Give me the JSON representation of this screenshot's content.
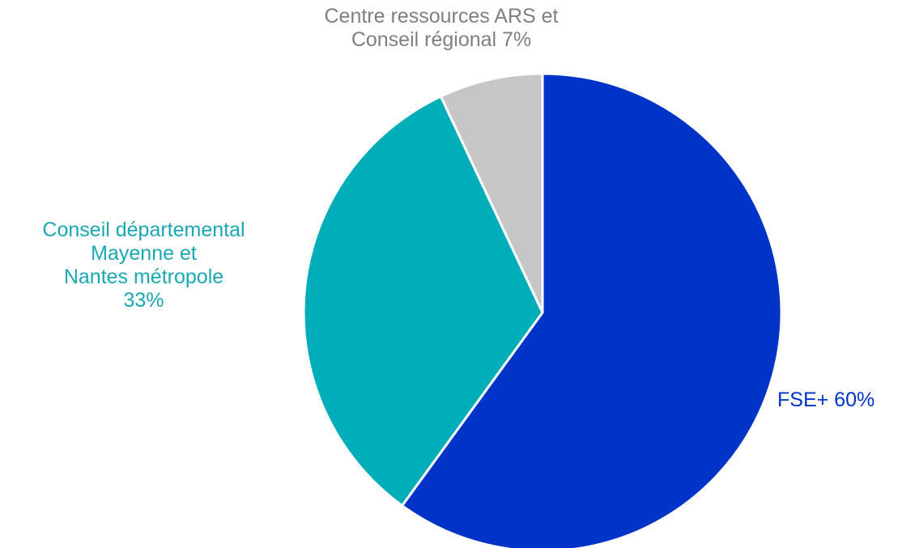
{
  "chart_data": {
    "type": "pie",
    "slices": [
      {
        "name": "FSE+",
        "value": 60,
        "label_lines": [
          "FSE+ 60%"
        ],
        "color": "#0033c8"
      },
      {
        "name": "Conseil départemental Mayenne et Nantes métropole",
        "value": 33,
        "label_lines": [
          "Conseil départemental",
          "Mayenne et",
          "Nantes métropole",
          "33%"
        ],
        "color": "#00aeb9"
      },
      {
        "name": "Centre ressources ARS et Conseil régional",
        "value": 7,
        "label_lines": [
          "Centre ressources ARS et",
          "Conseil régional  7%"
        ],
        "color": "#c6c6c6"
      }
    ],
    "start": "12 o'clock",
    "direction": "clockwise",
    "legend": "none",
    "data_labels": "outside"
  }
}
